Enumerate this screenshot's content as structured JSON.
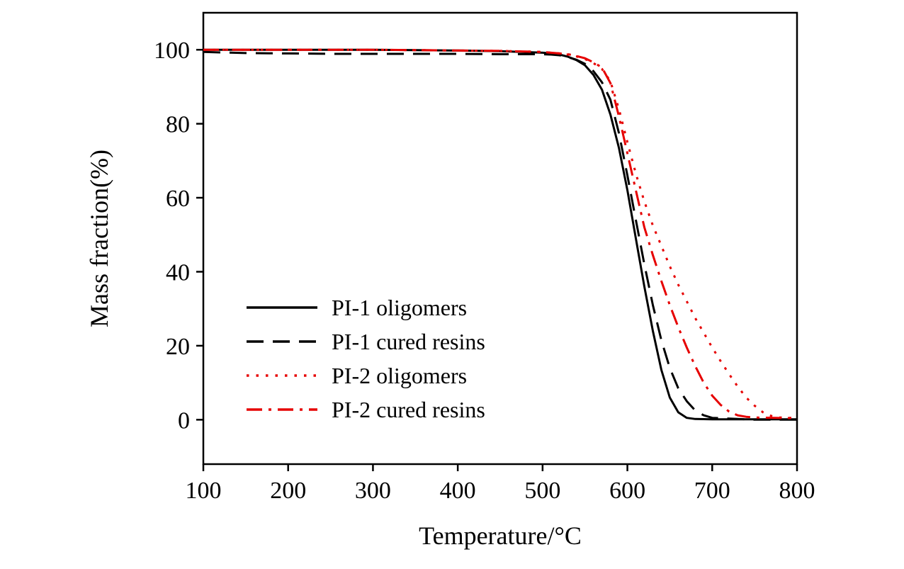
{
  "chart_data": {
    "type": "line",
    "title": "",
    "xlabel": "Temperature/°C",
    "ylabel": "Mass fraction(%)",
    "xlim": [
      100,
      800
    ],
    "ylim": [
      -12,
      110
    ],
    "xticks": [
      100,
      200,
      300,
      400,
      500,
      600,
      700,
      800
    ],
    "yticks": [
      0,
      20,
      40,
      60,
      80,
      100
    ],
    "grid": false,
    "legend_position": "inside-lower-left",
    "series": [
      {
        "name": "PI-1 oligomers",
        "color": "#000000",
        "dash": "solid",
        "x": [
          100,
          150,
          200,
          250,
          300,
          350,
          400,
          450,
          500,
          510,
          520,
          530,
          540,
          550,
          560,
          570,
          580,
          590,
          600,
          610,
          620,
          630,
          640,
          650,
          660,
          670,
          680,
          700,
          750,
          800
        ],
        "y": [
          100,
          100,
          100,
          100,
          100,
          99.9,
          99.8,
          99.6,
          99.2,
          99,
          98.7,
          98.1,
          97.2,
          95.8,
          93.2,
          89.2,
          82.5,
          73.5,
          62,
          49,
          36,
          24,
          13.5,
          6,
          2,
          0.5,
          0.2,
          0.1,
          0.1,
          0.1
        ]
      },
      {
        "name": "PI-1 cured resins",
        "color": "#000000",
        "dash": "dashed",
        "x": [
          100,
          150,
          200,
          250,
          300,
          350,
          400,
          450,
          500,
          510,
          520,
          530,
          540,
          550,
          560,
          570,
          580,
          590,
          600,
          610,
          620,
          630,
          640,
          650,
          660,
          670,
          680,
          690,
          700,
          750,
          800
        ],
        "y": [
          99.4,
          99.1,
          99,
          98.9,
          98.9,
          98.9,
          98.9,
          98.8,
          98.8,
          98.7,
          98.5,
          98,
          97.3,
          96.2,
          94.2,
          91.2,
          86.5,
          77.5,
          66,
          54,
          42,
          31,
          21.5,
          14,
          8.5,
          5,
          2.5,
          1.2,
          0.5,
          0,
          0
        ]
      },
      {
        "name": "PI-2 oligomers",
        "color": "#e60000",
        "dash": "dotted",
        "x": [
          100,
          150,
          200,
          250,
          300,
          350,
          400,
          450,
          500,
          510,
          520,
          530,
          540,
          550,
          560,
          570,
          580,
          590,
          600,
          610,
          620,
          630,
          640,
          650,
          660,
          670,
          680,
          690,
          700,
          710,
          720,
          730,
          740,
          750,
          760,
          770,
          780,
          790,
          800
        ],
        "y": [
          100,
          100,
          100,
          100,
          100,
          99.9,
          99.8,
          99.7,
          99.4,
          99.2,
          99,
          98.7,
          98.2,
          97.5,
          96.4,
          94.8,
          91.5,
          84,
          75,
          66.5,
          59,
          52.5,
          47,
          41.5,
          36.5,
          32,
          27.5,
          23.5,
          19.5,
          15.8,
          12.3,
          9,
          6,
          3.8,
          2,
          1,
          0.6,
          0.5,
          0.5
        ]
      },
      {
        "name": "PI-2 cured resins",
        "color": "#e60000",
        "dash": "dashdot",
        "x": [
          100,
          150,
          200,
          250,
          300,
          350,
          400,
          450,
          500,
          510,
          520,
          530,
          540,
          550,
          560,
          570,
          580,
          590,
          600,
          610,
          620,
          630,
          640,
          650,
          660,
          670,
          680,
          690,
          700,
          710,
          720,
          730,
          740,
          750,
          800
        ],
        "y": [
          100,
          100,
          100,
          100,
          100,
          99.9,
          99.8,
          99.7,
          99.4,
          99.2,
          99,
          98.8,
          98.3,
          97.7,
          96.6,
          95.2,
          91,
          82,
          72,
          62,
          52,
          44.5,
          37.5,
          31,
          25,
          19.5,
          14.5,
          10,
          6.5,
          4,
          2.2,
          1.2,
          0.8,
          0.6,
          0.4
        ]
      }
    ]
  }
}
